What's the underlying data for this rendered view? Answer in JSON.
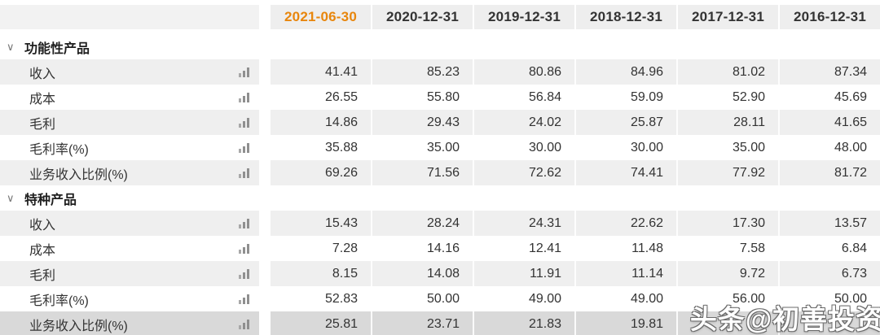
{
  "table": {
    "columns": [
      {
        "label": "2021-06-30",
        "accent": true
      },
      {
        "label": "2020-12-31",
        "accent": false
      },
      {
        "label": "2019-12-31",
        "accent": false
      },
      {
        "label": "2018-12-31",
        "accent": false
      },
      {
        "label": "2017-12-31",
        "accent": false
      },
      {
        "label": "2016-12-31",
        "accent": false
      }
    ],
    "groups": [
      {
        "label": "功能性产品",
        "rows": [
          {
            "label": "收入",
            "values": [
              "41.41",
              "85.23",
              "80.86",
              "84.96",
              "81.02",
              "87.34"
            ],
            "highlighted": false
          },
          {
            "label": "成本",
            "values": [
              "26.55",
              "55.80",
              "56.84",
              "59.09",
              "52.90",
              "45.69"
            ],
            "highlighted": false
          },
          {
            "label": "毛利",
            "values": [
              "14.86",
              "29.43",
              "24.02",
              "25.87",
              "28.11",
              "41.65"
            ],
            "highlighted": false
          },
          {
            "label": "毛利率(%)",
            "values": [
              "35.88",
              "35.00",
              "30.00",
              "30.00",
              "35.00",
              "48.00"
            ],
            "highlighted": false
          },
          {
            "label": "业务收入比例(%)",
            "values": [
              "69.26",
              "71.56",
              "72.62",
              "74.41",
              "77.92",
              "81.72"
            ],
            "highlighted": false
          }
        ]
      },
      {
        "label": "特种产品",
        "rows": [
          {
            "label": "收入",
            "values": [
              "15.43",
              "28.24",
              "24.31",
              "22.62",
              "17.30",
              "13.57"
            ],
            "highlighted": false
          },
          {
            "label": "成本",
            "values": [
              "7.28",
              "14.16",
              "12.41",
              "11.48",
              "7.58",
              "6.84"
            ],
            "highlighted": false
          },
          {
            "label": "毛利",
            "values": [
              "8.15",
              "14.08",
              "11.91",
              "11.14",
              "9.72",
              "6.73"
            ],
            "highlighted": false
          },
          {
            "label": "毛利率(%)",
            "values": [
              "52.83",
              "50.00",
              "49.00",
              "49.00",
              "56.00",
              "50.00"
            ],
            "highlighted": false
          },
          {
            "label": "业务收入比例(%)",
            "values": [
              "25.81",
              "23.71",
              "21.83",
              "19.81",
              "",
              ""
            ],
            "highlighted": true
          }
        ]
      }
    ]
  },
  "icons": {
    "collapse_chevron": "∨",
    "row_chart": "bar-chart-icon"
  },
  "watermark": {
    "text": "头条@初善投资"
  },
  "colors": {
    "accent": "#e8860d",
    "stripe": "#efefef",
    "highlight": "#d9d9d9",
    "header_bg": "#eeeeee",
    "text": "#333333"
  }
}
